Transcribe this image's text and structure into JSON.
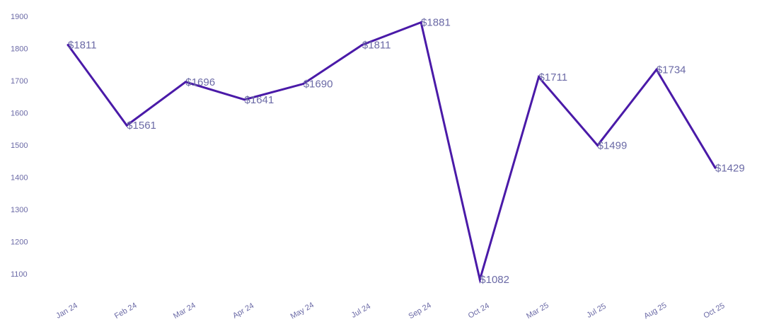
{
  "chart_data": {
    "type": "line",
    "title": "",
    "xlabel": "",
    "ylabel": "",
    "categories": [
      "Jan 24",
      "Feb 24",
      "Mar 24",
      "Apr 24",
      "May 24",
      "Jul 24",
      "Sep 24",
      "Oct 24",
      "Mar 25",
      "Jul 25",
      "Aug 25",
      "Oct 25"
    ],
    "series": [
      {
        "values": [
          1811,
          1561,
          1696,
          1641,
          1690,
          1811,
          1881,
          1082,
          1711,
          1499,
          1734,
          1429
        ],
        "labels": [
          "$1811",
          "$1561",
          "$1696",
          "$1641",
          "$1690",
          "$1811",
          "$1881",
          "$1082",
          "$1711",
          "$1499",
          "$1734",
          "$1429"
        ]
      }
    ],
    "y_ticks": [
      "1900",
      "1800",
      "1700",
      "1600",
      "1500",
      "1400",
      "1300",
      "1200",
      "1100"
    ],
    "ylim": [
      1050,
      1900
    ],
    "grid": false,
    "legend": "none",
    "colors": {
      "line": "#4a1aa8",
      "text": "#6b6aa6"
    }
  }
}
